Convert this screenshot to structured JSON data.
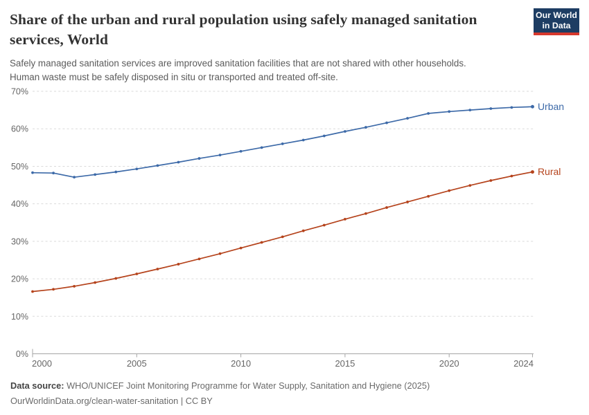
{
  "header": {
    "title_lines": [
      "Share of the urban and rural population using safely managed sanitation",
      "services, World"
    ],
    "subtitle_lines": [
      "Safely managed sanitation services are improved sanitation facilities that are not shared with other households.",
      "Human waste must be safely disposed in situ or transported and treated off-site."
    ],
    "logo_lines": [
      "Our World",
      "in Data"
    ],
    "logo_colors": {
      "background": "#1d3d63",
      "underline": "#d7382d",
      "text": "#ffffff"
    }
  },
  "chart_data": {
    "type": "line",
    "title": "Share of the urban and rural population using safely managed sanitation services, World",
    "x": [
      2000,
      2001,
      2002,
      2003,
      2004,
      2005,
      2006,
      2007,
      2008,
      2009,
      2010,
      2011,
      2012,
      2013,
      2014,
      2015,
      2016,
      2017,
      2018,
      2019,
      2020,
      2021,
      2022,
      2023,
      2024
    ],
    "series": [
      {
        "name": "Urban",
        "color": "#3d6aa8",
        "values": [
          48.3,
          48.2,
          47.1,
          47.8,
          48.5,
          49.3,
          50.2,
          51.1,
          52.1,
          53.0,
          54.0,
          55.0,
          56.0,
          57.0,
          58.1,
          59.3,
          60.4,
          61.6,
          62.8,
          64.1,
          64.6,
          65.0,
          65.4,
          65.7,
          65.9
        ]
      },
      {
        "name": "Rural",
        "color": "#b5431c",
        "values": [
          16.6,
          17.2,
          18.0,
          19.0,
          20.1,
          21.3,
          22.6,
          23.9,
          25.3,
          26.7,
          28.2,
          29.7,
          31.2,
          32.8,
          34.3,
          35.9,
          37.4,
          39.0,
          40.5,
          42.0,
          43.5,
          44.9,
          46.2,
          47.4,
          48.5
        ]
      }
    ],
    "xlabel": "",
    "ylabel": "",
    "ylim": [
      0,
      70
    ],
    "yticks": [
      0,
      10,
      20,
      30,
      40,
      50,
      60,
      70
    ],
    "ytick_suffix": "%",
    "xticks": [
      2000,
      2005,
      2010,
      2015,
      2020,
      2024
    ],
    "grid": "horizontal-dashed",
    "legend_position": "line-end-labels",
    "colors": {
      "gridline": "#dadada",
      "axis": "#a5a5a5",
      "tick_label": "#666666"
    }
  },
  "footer": {
    "data_source_label": "Data source:",
    "data_source_text": "WHO/UNICEF Joint Monitoring Programme for Water Supply, Sanitation and Hygiene (2025)",
    "link_line": "OurWorldinData.org/clean-water-sanitation | CC BY"
  }
}
